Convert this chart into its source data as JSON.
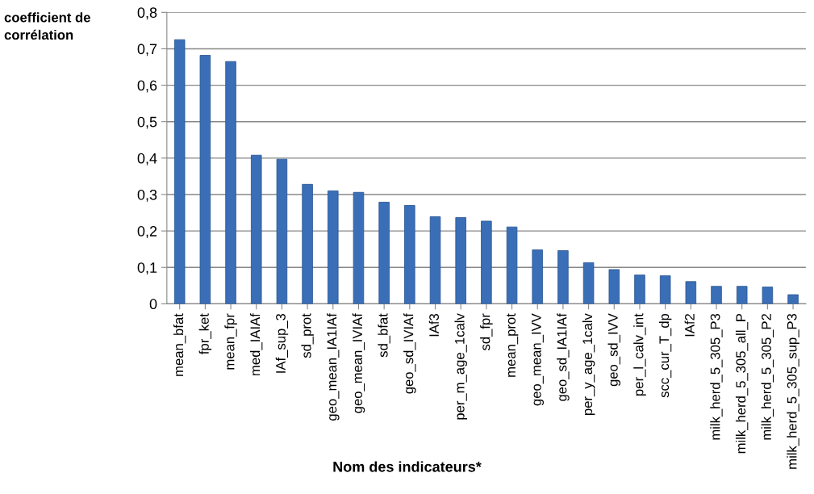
{
  "chart_data": {
    "type": "bar",
    "ylabel": "coefficient de\ncorrélation",
    "xlabel": "Nom des indicateurs*",
    "categories": [
      "mean_bfat",
      "fpr_ket",
      "mean_fpr",
      "med_IAIAf",
      "IAf_sup_3",
      "sd_prot",
      "geo_mean_IA1IAf",
      "geo_mean_IVIAf",
      "sd_bfat",
      "geo_sd_IVIAf",
      "IAf3",
      "per_m_age_1calv",
      "sd_fpr",
      "mean_prot",
      "geo_mean_IVV",
      "geo_sd_IA1IAf",
      "per_y_age_1calv",
      "geo_sd_IVV",
      "per_l_calv_int",
      "scc_cur_T_dp",
      "IAf2",
      "milk_herd_5_305_P3",
      "milk_herd_5_305_all_P",
      "milk_herd_5_305_P2",
      "milk_herd_5_305_sup_P3"
    ],
    "values": [
      0.725,
      0.682,
      0.665,
      0.408,
      0.397,
      0.328,
      0.31,
      0.306,
      0.279,
      0.27,
      0.239,
      0.237,
      0.227,
      0.211,
      0.148,
      0.146,
      0.113,
      0.094,
      0.079,
      0.077,
      0.061,
      0.048,
      0.048,
      0.046,
      0.025
    ],
    "color": "#3a6fb8",
    "ylim": [
      0,
      0.8
    ],
    "yticks": [
      {
        "value": 0,
        "label": "0"
      },
      {
        "value": 0.1,
        "label": "0,1"
      },
      {
        "value": 0.2,
        "label": "0,2"
      },
      {
        "value": 0.3,
        "label": "0,3"
      },
      {
        "value": 0.4,
        "label": "0,4"
      },
      {
        "value": 0.5,
        "label": "0,5"
      },
      {
        "value": 0.6,
        "label": "0,6"
      },
      {
        "value": 0.7,
        "label": "0,7"
      },
      {
        "value": 0.8,
        "label": "0,8"
      }
    ],
    "grid": "y"
  }
}
